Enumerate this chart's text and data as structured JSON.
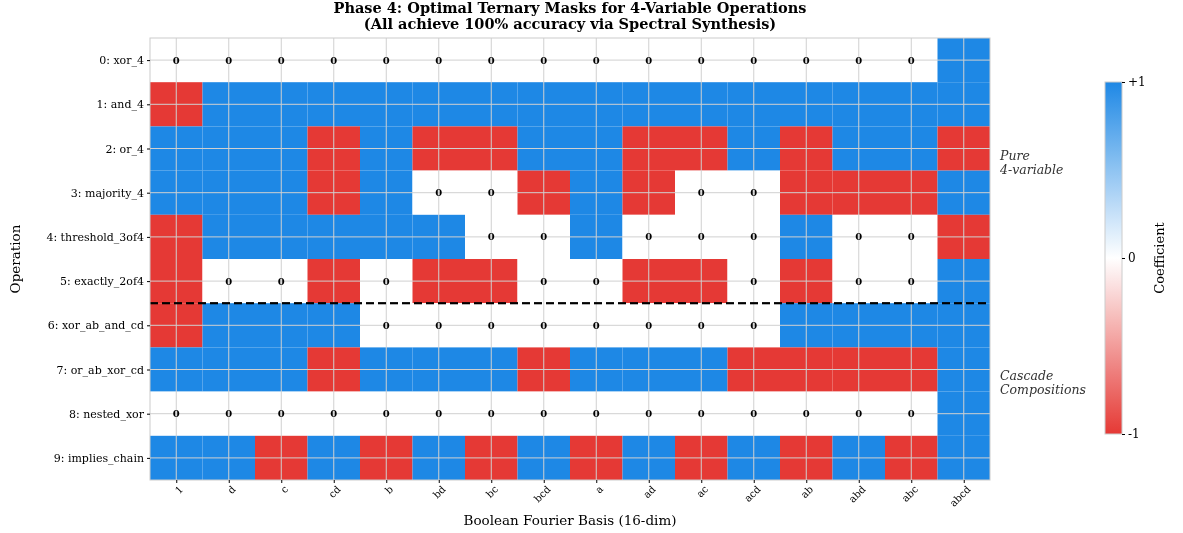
{
  "chart_data": {
    "type": "heatmap",
    "title": "Phase 4: Optimal Ternary Masks for 4-Variable Operations\n(All achieve 100% accuracy via Spectral Synthesis)",
    "xlabel": "Boolean Fourier Basis (16-dim)",
    "ylabel": "Operation",
    "clabel": "Coefficient",
    "categories": [
      "1",
      "d",
      "c",
      "cd",
      "b",
      "bd",
      "bc",
      "bcd",
      "a",
      "ad",
      "ac",
      "acd",
      "ab",
      "abd",
      "abc",
      "abcd"
    ],
    "y_categories": [
      "0: xor_4",
      "1: and_4",
      "2: or_4",
      "3: majority_4",
      "4: threshold_3of4",
      "5: exactly_2of4",
      "6: xor_ab_and_cd",
      "7: or_ab_xor_cd",
      "8: nested_xor",
      "9: implies_chain"
    ],
    "cells": [
      [
        0,
        0,
        0,
        0,
        0,
        0,
        0,
        0,
        0,
        0,
        0,
        0,
        0,
        0,
        0,
        1
      ],
      [
        -1,
        1,
        1,
        1,
        1,
        1,
        1,
        1,
        1,
        1,
        1,
        1,
        1,
        1,
        1,
        1
      ],
      [
        1,
        1,
        1,
        -1,
        1,
        -1,
        -1,
        1,
        1,
        -1,
        -1,
        1,
        -1,
        1,
        1,
        -1
      ],
      [
        1,
        1,
        1,
        -1,
        1,
        0,
        0,
        -1,
        1,
        -1,
        0,
        0,
        -1,
        -1,
        -1,
        1
      ],
      [
        -1,
        1,
        1,
        1,
        1,
        1,
        0,
        0,
        1,
        0,
        0,
        0,
        1,
        0,
        0,
        -1
      ],
      [
        -1,
        0,
        0,
        -1,
        0,
        -1,
        -1,
        0,
        0,
        -1,
        -1,
        0,
        -1,
        0,
        0,
        1
      ],
      [
        -1,
        1,
        1,
        1,
        0,
        0,
        0,
        0,
        0,
        0,
        0,
        0,
        1,
        1,
        1,
        1
      ],
      [
        1,
        1,
        1,
        -1,
        1,
        1,
        1,
        -1,
        1,
        1,
        1,
        -1,
        -1,
        -1,
        -1,
        1
      ],
      [
        0,
        0,
        0,
        0,
        0,
        0,
        0,
        0,
        0,
        0,
        0,
        0,
        0,
        0,
        0,
        1
      ],
      [
        1,
        1,
        -1,
        1,
        -1,
        1,
        -1,
        1,
        -1,
        1,
        -1,
        1,
        -1,
        1,
        -1,
        1
      ]
    ],
    "cell_labels": [
      [
        "0",
        "0",
        "0",
        "0",
        "0",
        "0",
        "0",
        "0",
        "0",
        "0",
        "0",
        "0",
        "0",
        "0",
        "0",
        null
      ],
      [
        null,
        null,
        null,
        null,
        null,
        null,
        null,
        null,
        null,
        null,
        null,
        null,
        null,
        null,
        null,
        null
      ],
      [
        null,
        null,
        null,
        null,
        null,
        null,
        null,
        null,
        null,
        null,
        null,
        null,
        null,
        null,
        null,
        null
      ],
      [
        null,
        null,
        null,
        null,
        null,
        "0",
        "0",
        null,
        null,
        null,
        "0",
        "0",
        null,
        null,
        null,
        null
      ],
      [
        null,
        null,
        null,
        null,
        null,
        null,
        "0",
        "0",
        null,
        "0",
        "0",
        "0",
        null,
        "0",
        "0",
        null
      ],
      [
        null,
        "0",
        "0",
        null,
        "0",
        null,
        null,
        "0",
        "0",
        null,
        null,
        "0",
        null,
        "0",
        "0",
        null
      ],
      [
        null,
        null,
        null,
        null,
        "0",
        "0",
        "0",
        "0",
        "0",
        "0",
        "0",
        "0",
        null,
        null,
        null,
        null
      ],
      [
        null,
        null,
        null,
        null,
        null,
        null,
        null,
        null,
        null,
        null,
        null,
        null,
        null,
        null,
        null,
        null
      ],
      [
        "0",
        "0",
        "0",
        "0",
        "0",
        "0",
        "0",
        "0",
        "0",
        "0",
        "0",
        "0",
        "0",
        "0",
        "0",
        null
      ],
      [
        null,
        null,
        null,
        null,
        null,
        null,
        null,
        null,
        null,
        null,
        null,
        null,
        null,
        null,
        null,
        null
      ]
    ],
    "colors": [
      "#e53935",
      "#ffffff",
      "#1e88e5"
    ],
    "clim": [
      -1,
      1
    ],
    "cticks": [
      {
        "value": 1,
        "label": "+1"
      },
      {
        "value": 0,
        "label": "0"
      },
      {
        "value": -1,
        "label": "-1"
      }
    ],
    "grid": true,
    "annotations": [
      "Pure\n4-variable",
      "Cascade\nCompositions"
    ]
  }
}
